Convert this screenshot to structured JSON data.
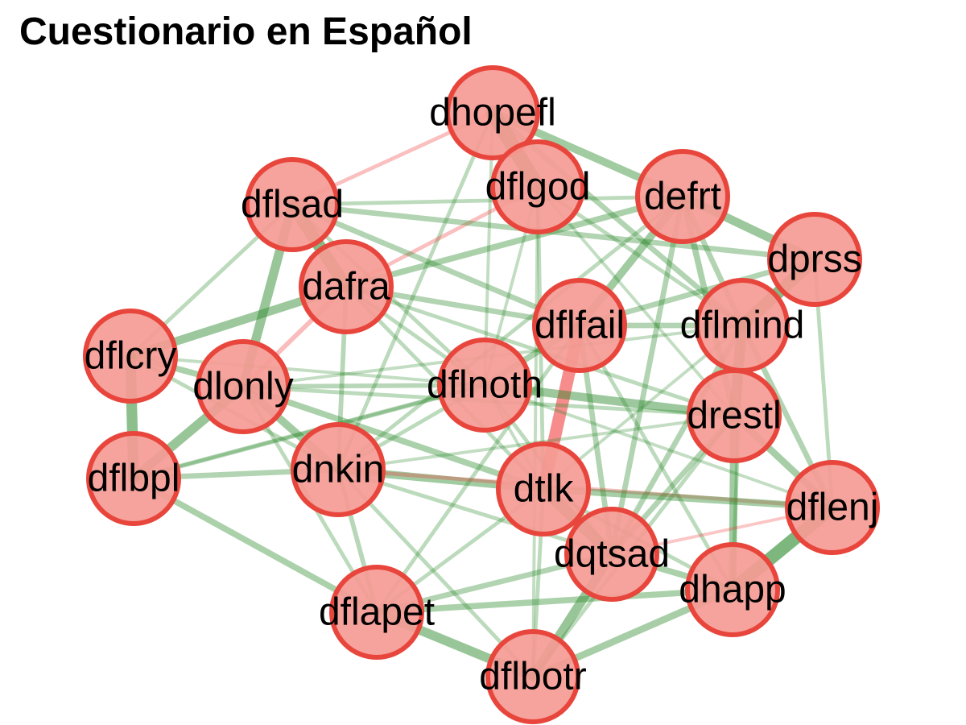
{
  "title": "Cuestionario en Español",
  "colors": {
    "node_fill": "#f59b95",
    "node_stroke": "#e8463c",
    "positive_edge": "#2e8b2e",
    "negative_edge": "#f03c3c",
    "label": "#000000"
  },
  "nodes": [
    {
      "id": "dhopefl",
      "label": "dhopefl"
    },
    {
      "id": "dflgod",
      "label": "dflgod"
    },
    {
      "id": "defrt",
      "label": "defrt"
    },
    {
      "id": "dflsad",
      "label": "dflsad"
    },
    {
      "id": "dprss",
      "label": "dprss"
    },
    {
      "id": "dafra",
      "label": "dafra"
    },
    {
      "id": "dflfail",
      "label": "dflfail"
    },
    {
      "id": "dflmind",
      "label": "dflmind"
    },
    {
      "id": "dflcry",
      "label": "dflcry"
    },
    {
      "id": "dlonly",
      "label": "dlonly"
    },
    {
      "id": "dflnoth",
      "label": "dflnoth"
    },
    {
      "id": "drestl",
      "label": "drestl"
    },
    {
      "id": "dflbpl",
      "label": "dflbpl"
    },
    {
      "id": "dnkin",
      "label": "dnkin"
    },
    {
      "id": "dtlk",
      "label": "dtlk"
    },
    {
      "id": "dflenj",
      "label": "dflenj"
    },
    {
      "id": "dqtsad",
      "label": "dqtsad"
    },
    {
      "id": "dhapp",
      "label": "dhapp"
    },
    {
      "id": "dflapet",
      "label": "dflapet"
    },
    {
      "id": "dflbotr",
      "label": "dflbotr"
    }
  ],
  "edges": [
    {
      "source": "dhopefl",
      "target": "dflgod",
      "weight": 0.9,
      "sign": "positive"
    },
    {
      "source": "dhopefl",
      "target": "defrt",
      "weight": 0.45,
      "sign": "positive"
    },
    {
      "source": "dhopefl",
      "target": "dflsad",
      "weight": 0.2,
      "sign": "negative"
    },
    {
      "source": "dhopefl",
      "target": "dflmind",
      "weight": 0.3,
      "sign": "positive"
    },
    {
      "source": "dhopefl",
      "target": "dnkin",
      "weight": 0.2,
      "sign": "positive"
    },
    {
      "source": "dhopefl",
      "target": "dflnoth",
      "weight": 0.15,
      "sign": "positive"
    },
    {
      "source": "dflgod",
      "target": "dtlk",
      "weight": 0.2,
      "sign": "positive"
    },
    {
      "source": "dflgod",
      "target": "dafra",
      "weight": 0.2,
      "sign": "negative"
    },
    {
      "source": "dflgod",
      "target": "dflmind",
      "weight": 0.2,
      "sign": "positive"
    },
    {
      "source": "dflgod",
      "target": "dflnoth",
      "weight": 0.15,
      "sign": "positive"
    },
    {
      "source": "dflgod",
      "target": "dflbotr",
      "weight": 0.15,
      "sign": "positive"
    },
    {
      "source": "dflgod",
      "target": "drestl",
      "weight": 0.15,
      "sign": "positive"
    },
    {
      "source": "defrt",
      "target": "dprss",
      "weight": 0.5,
      "sign": "positive"
    },
    {
      "source": "defrt",
      "target": "dflfail",
      "weight": 0.45,
      "sign": "positive"
    },
    {
      "source": "defrt",
      "target": "dafra",
      "weight": 0.35,
      "sign": "positive"
    },
    {
      "source": "defrt",
      "target": "drestl",
      "weight": 0.35,
      "sign": "positive"
    },
    {
      "source": "defrt",
      "target": "dqtsad",
      "weight": 0.3,
      "sign": "positive"
    },
    {
      "source": "defrt",
      "target": "dflmind",
      "weight": 0.3,
      "sign": "positive"
    },
    {
      "source": "defrt",
      "target": "dflsad",
      "weight": 0.2,
      "sign": "positive"
    },
    {
      "source": "defrt",
      "target": "dnkin",
      "weight": 0.2,
      "sign": "positive"
    },
    {
      "source": "dflsad",
      "target": "dafra",
      "weight": 0.75,
      "sign": "positive"
    },
    {
      "source": "dflsad",
      "target": "dlonly",
      "weight": 0.55,
      "sign": "positive"
    },
    {
      "source": "dflsad",
      "target": "dflcry",
      "weight": 0.2,
      "sign": "positive"
    },
    {
      "source": "dflsad",
      "target": "dflfail",
      "weight": 0.3,
      "sign": "positive"
    },
    {
      "source": "dflsad",
      "target": "dprss",
      "weight": 0.3,
      "sign": "positive"
    },
    {
      "source": "dflsad",
      "target": "dflnoth",
      "weight": 0.2,
      "sign": "positive"
    },
    {
      "source": "dafra",
      "target": "dflcry",
      "weight": 0.5,
      "sign": "positive"
    },
    {
      "source": "dafra",
      "target": "dflfail",
      "weight": 0.3,
      "sign": "positive"
    },
    {
      "source": "dafra",
      "target": "dnkin",
      "weight": 0.25,
      "sign": "positive"
    },
    {
      "source": "dafra",
      "target": "dlonly",
      "weight": 0.25,
      "sign": "negative"
    },
    {
      "source": "dafra",
      "target": "dflnoth",
      "weight": 0.2,
      "sign": "positive"
    },
    {
      "source": "dafra",
      "target": "dtlk",
      "weight": 0.2,
      "sign": "positive"
    },
    {
      "source": "dafra",
      "target": "drestl",
      "weight": 0.2,
      "sign": "positive"
    },
    {
      "source": "dprss",
      "target": "dflmind",
      "weight": 0.75,
      "sign": "positive"
    },
    {
      "source": "dprss",
      "target": "dflfail",
      "weight": 0.3,
      "sign": "positive"
    },
    {
      "source": "dprss",
      "target": "dflenj",
      "weight": 0.2,
      "sign": "positive"
    },
    {
      "source": "dflfail",
      "target": "dtlk",
      "weight": 0.75,
      "sign": "negative"
    },
    {
      "source": "dflfail",
      "target": "dflnoth",
      "weight": 0.35,
      "sign": "positive"
    },
    {
      "source": "dflfail",
      "target": "dqtsad",
      "weight": 0.3,
      "sign": "positive"
    },
    {
      "source": "dflfail",
      "target": "dflmind",
      "weight": 0.3,
      "sign": "positive"
    },
    {
      "source": "dflfail",
      "target": "dflapet",
      "weight": 0.2,
      "sign": "positive"
    },
    {
      "source": "dflfail",
      "target": "dhapp",
      "weight": 0.2,
      "sign": "positive"
    },
    {
      "source": "dflmind",
      "target": "drestl",
      "weight": 0.65,
      "sign": "positive"
    },
    {
      "source": "dflmind",
      "target": "dflenj",
      "weight": 0.3,
      "sign": "positive"
    },
    {
      "source": "dflmind",
      "target": "dqtsad",
      "weight": 0.3,
      "sign": "positive"
    },
    {
      "source": "dflmind",
      "target": "dhapp",
      "weight": 0.2,
      "sign": "positive"
    },
    {
      "source": "dflmind",
      "target": "dtlk",
      "weight": 0.15,
      "sign": "positive"
    },
    {
      "source": "dflcry",
      "target": "dflbpl",
      "weight": 0.65,
      "sign": "positive"
    },
    {
      "source": "dflcry",
      "target": "dlonly",
      "weight": 0.35,
      "sign": "positive"
    },
    {
      "source": "dflcry",
      "target": "dnkin",
      "weight": 0.2,
      "sign": "positive"
    },
    {
      "source": "dflcry",
      "target": "dflnoth",
      "weight": 0.15,
      "sign": "positive"
    },
    {
      "source": "dlonly",
      "target": "dflbpl",
      "weight": 0.55,
      "sign": "positive"
    },
    {
      "source": "dlonly",
      "target": "dnkin",
      "weight": 0.45,
      "sign": "positive"
    },
    {
      "source": "dlonly",
      "target": "dtlk",
      "weight": 0.35,
      "sign": "positive"
    },
    {
      "source": "dlonly",
      "target": "dflnoth",
      "weight": 0.25,
      "sign": "positive"
    },
    {
      "source": "dlonly",
      "target": "drestl",
      "weight": 0.2,
      "sign": "positive"
    },
    {
      "source": "dlonly",
      "target": "dflapet",
      "weight": 0.2,
      "sign": "positive"
    },
    {
      "source": "dlonly",
      "target": "dflmind",
      "weight": 0.15,
      "sign": "positive"
    },
    {
      "source": "dflnoth",
      "target": "drestl",
      "weight": 0.5,
      "sign": "positive"
    },
    {
      "source": "dflnoth",
      "target": "dflbpl",
      "weight": 0.25,
      "sign": "positive"
    },
    {
      "source": "dflnoth",
      "target": "dnkin",
      "weight": 0.2,
      "sign": "positive"
    },
    {
      "source": "dflnoth",
      "target": "dqtsad",
      "weight": 0.2,
      "sign": "positive"
    },
    {
      "source": "dflnoth",
      "target": "dtlk",
      "weight": 0.15,
      "sign": "positive"
    },
    {
      "source": "dflnoth",
      "target": "dflenj",
      "weight": 0.15,
      "sign": "positive"
    },
    {
      "source": "drestl",
      "target": "dhapp",
      "weight": 0.45,
      "sign": "positive"
    },
    {
      "source": "drestl",
      "target": "dflenj",
      "weight": 0.4,
      "sign": "positive"
    },
    {
      "source": "drestl",
      "target": "dqtsad",
      "weight": 0.3,
      "sign": "positive"
    },
    {
      "source": "drestl",
      "target": "dflbotr",
      "weight": 0.2,
      "sign": "positive"
    },
    {
      "source": "drestl",
      "target": "dnkin",
      "weight": 0.15,
      "sign": "positive"
    },
    {
      "source": "dflbpl",
      "target": "dnkin",
      "weight": 0.3,
      "sign": "positive"
    },
    {
      "source": "dflbpl",
      "target": "dflapet",
      "weight": 0.35,
      "sign": "positive"
    },
    {
      "source": "dflbpl",
      "target": "dflnoth",
      "weight": 0.15,
      "sign": "positive"
    },
    {
      "source": "dnkin",
      "target": "dtlk",
      "weight": 0.45,
      "sign": "positive"
    },
    {
      "source": "dnkin",
      "target": "dflapet",
      "weight": 0.25,
      "sign": "positive"
    },
    {
      "source": "dnkin",
      "target": "dqtsad",
      "weight": 0.2,
      "sign": "positive"
    },
    {
      "source": "dnkin",
      "target": "dflbotr",
      "weight": 0.2,
      "sign": "positive"
    },
    {
      "source": "dnkin",
      "target": "dflenj",
      "weight": 0.2,
      "sign": "negative"
    },
    {
      "source": "dtlk",
      "target": "dqtsad",
      "weight": 0.7,
      "sign": "positive"
    },
    {
      "source": "dtlk",
      "target": "dflenj",
      "weight": 0.4,
      "sign": "positive"
    },
    {
      "source": "dtlk",
      "target": "dflbotr",
      "weight": 0.2,
      "sign": "positive"
    },
    {
      "source": "dtlk",
      "target": "dflapet",
      "weight": 0.2,
      "sign": "positive"
    },
    {
      "source": "dtlk",
      "target": "dhapp",
      "weight": 0.2,
      "sign": "positive"
    },
    {
      "source": "dflenj",
      "target": "dhapp",
      "weight": 0.8,
      "sign": "positive"
    },
    {
      "source": "dflenj",
      "target": "dqtsad",
      "weight": 0.15,
      "sign": "negative"
    },
    {
      "source": "dqtsad",
      "target": "dflbotr",
      "weight": 0.55,
      "sign": "positive"
    },
    {
      "source": "dqtsad",
      "target": "dhapp",
      "weight": 0.35,
      "sign": "positive"
    },
    {
      "source": "dqtsad",
      "target": "dflapet",
      "weight": 0.3,
      "sign": "positive"
    },
    {
      "source": "dhapp",
      "target": "dflbotr",
      "weight": 0.4,
      "sign": "positive"
    },
    {
      "source": "dhapp",
      "target": "dflapet",
      "weight": 0.35,
      "sign": "positive"
    },
    {
      "source": "dflapet",
      "target": "dflbotr",
      "weight": 0.55,
      "sign": "positive"
    }
  ]
}
